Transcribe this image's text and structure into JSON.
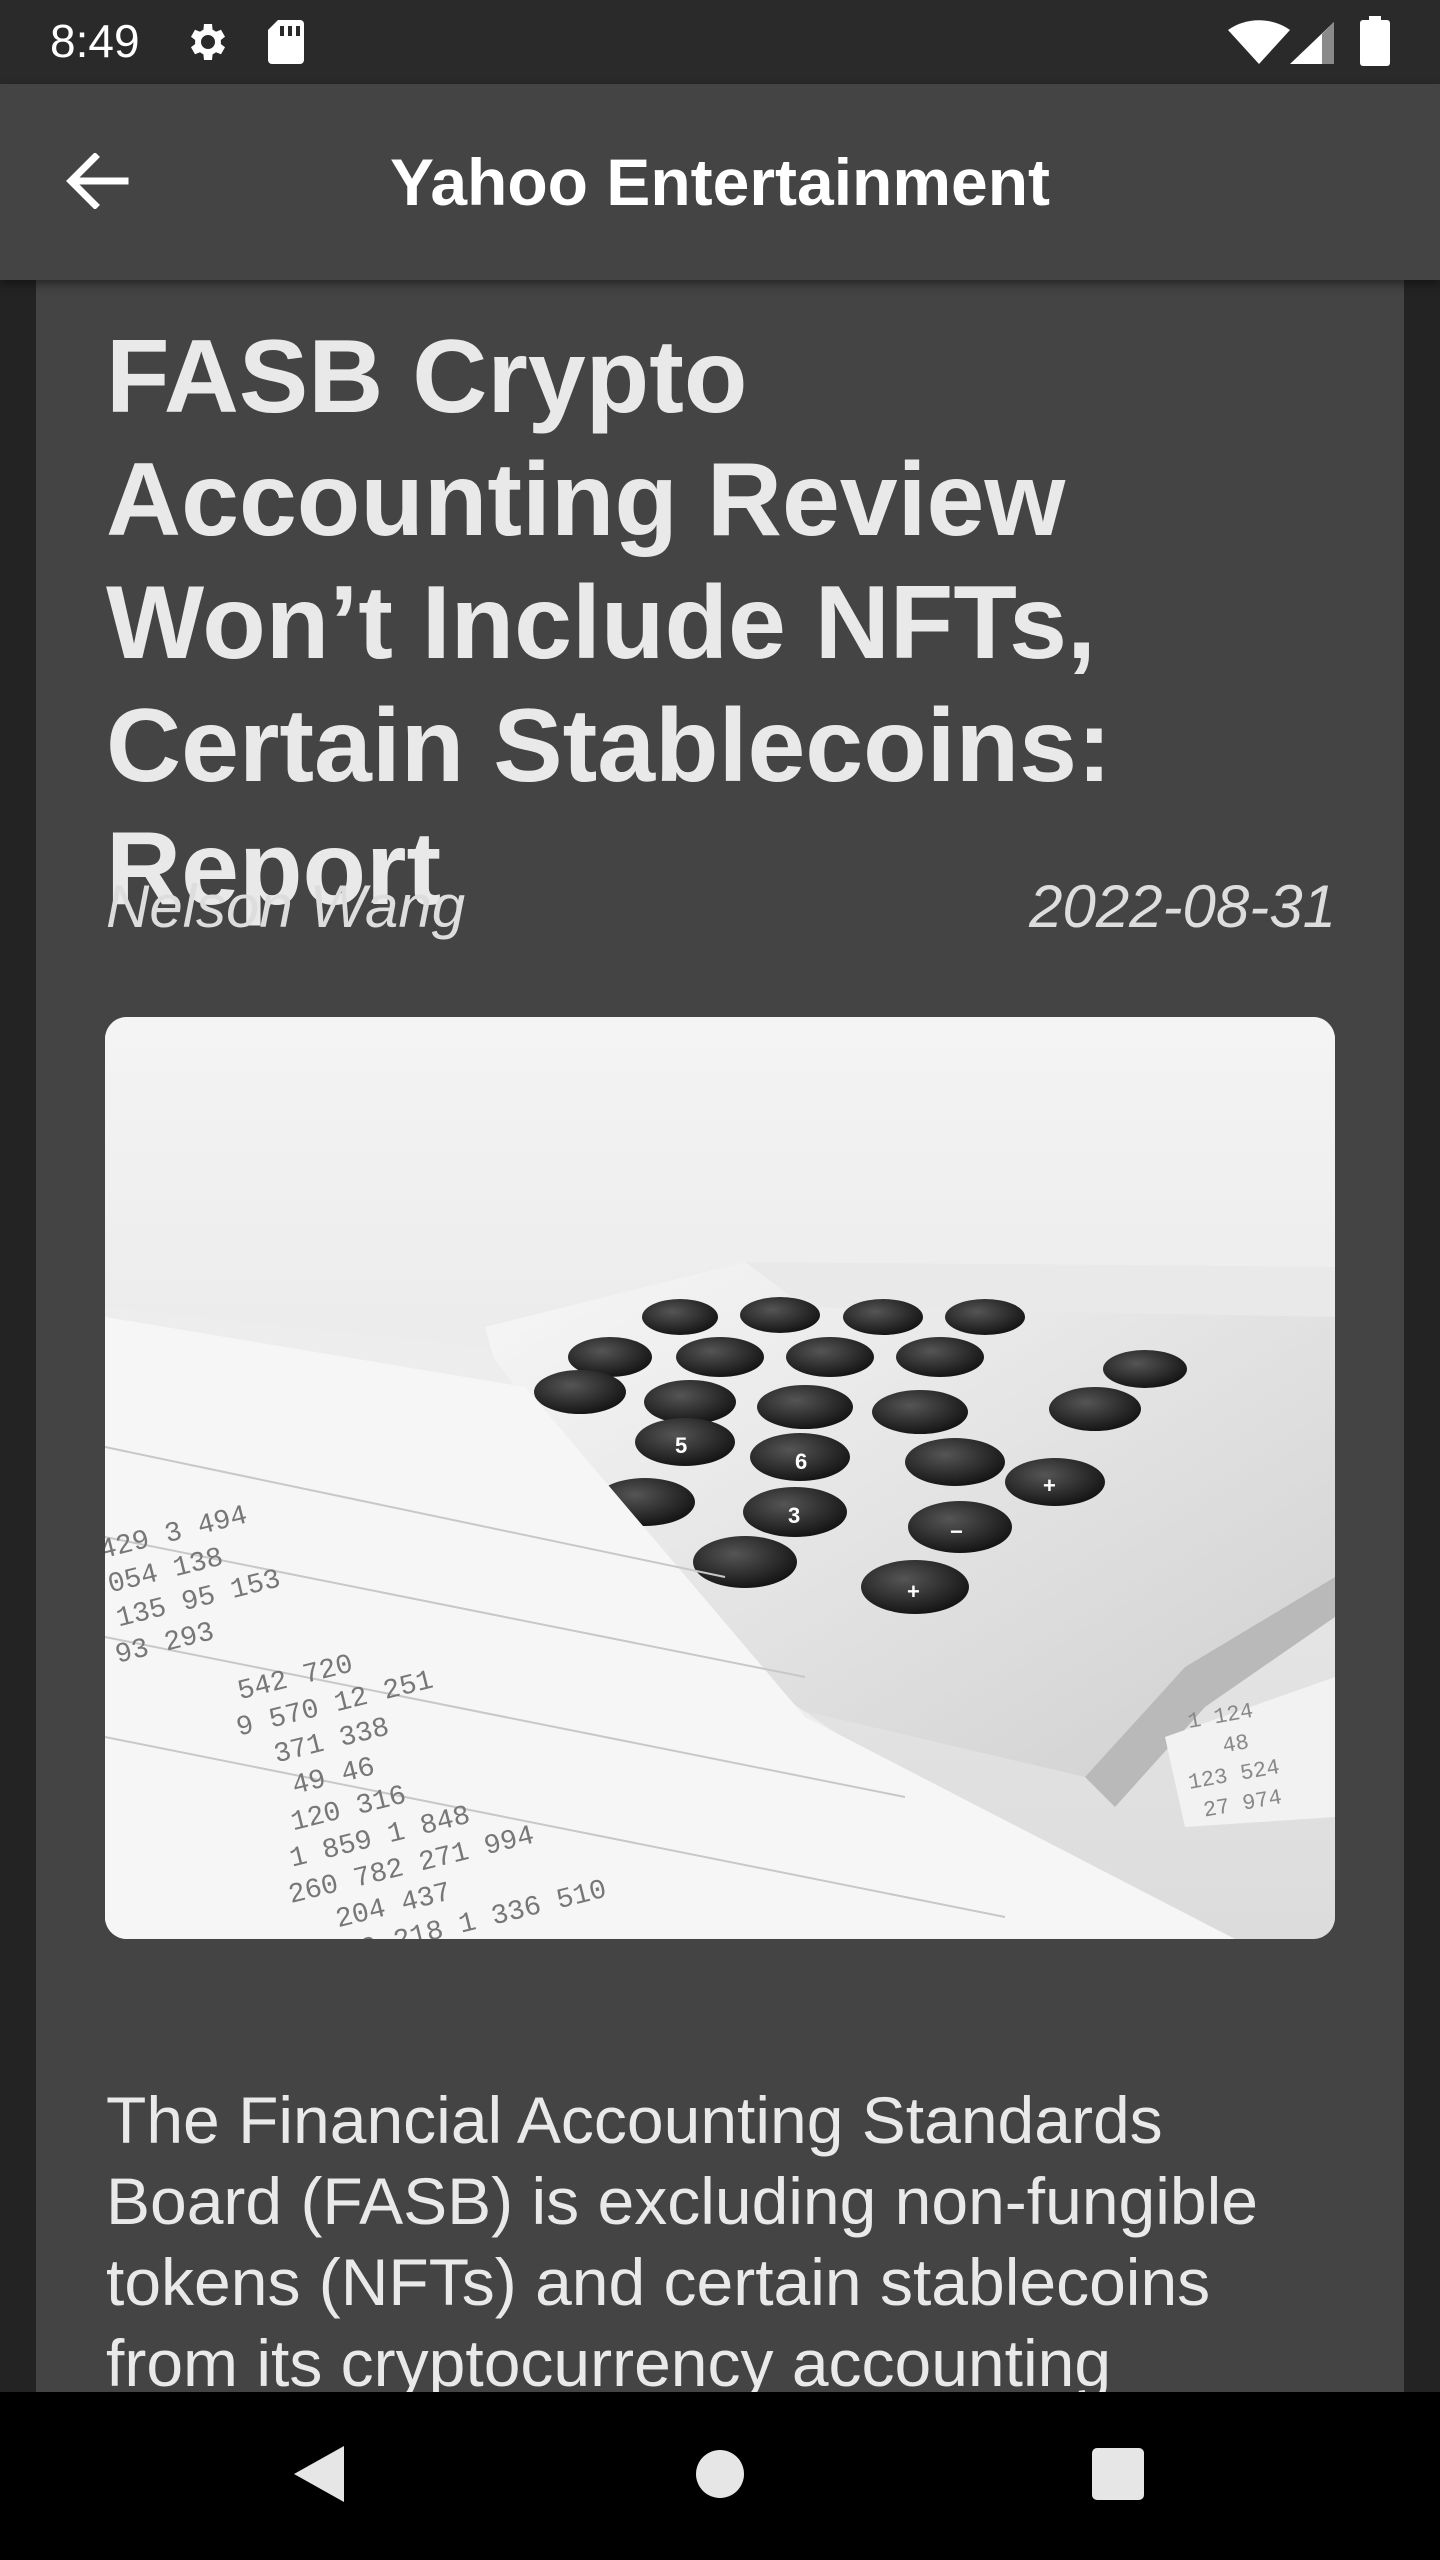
{
  "status_bar": {
    "time": "8:49",
    "icons": [
      "settings-gear-icon",
      "sd-card-icon",
      "wifi-icon",
      "cell-signal-icon",
      "battery-icon"
    ]
  },
  "app_bar": {
    "title": "Yahoo Entertainment",
    "back_icon": "arrow-left-icon"
  },
  "article": {
    "title": "FASB Crypto Accounting Review Won’t Include NFTs, Certain Stablecoins: Report",
    "author": "Nelson Wang",
    "date": "2022-08-31",
    "image_icon": "calculator-and-spreadsheet-photo",
    "body": "The Financial Accounting Standards Board (FASB) is excluding non-fungible tokens (NFTs) and certain stablecoins from its cryptocurrency accounting"
  },
  "nav_bar": {
    "icons": [
      "back-triangle-icon",
      "home-circle-icon",
      "recents-square-icon"
    ]
  },
  "colors": {
    "app_bar": "#444444",
    "card": "#444444",
    "status_bar": "#2a2a2a",
    "text": "#e9e9e9"
  }
}
